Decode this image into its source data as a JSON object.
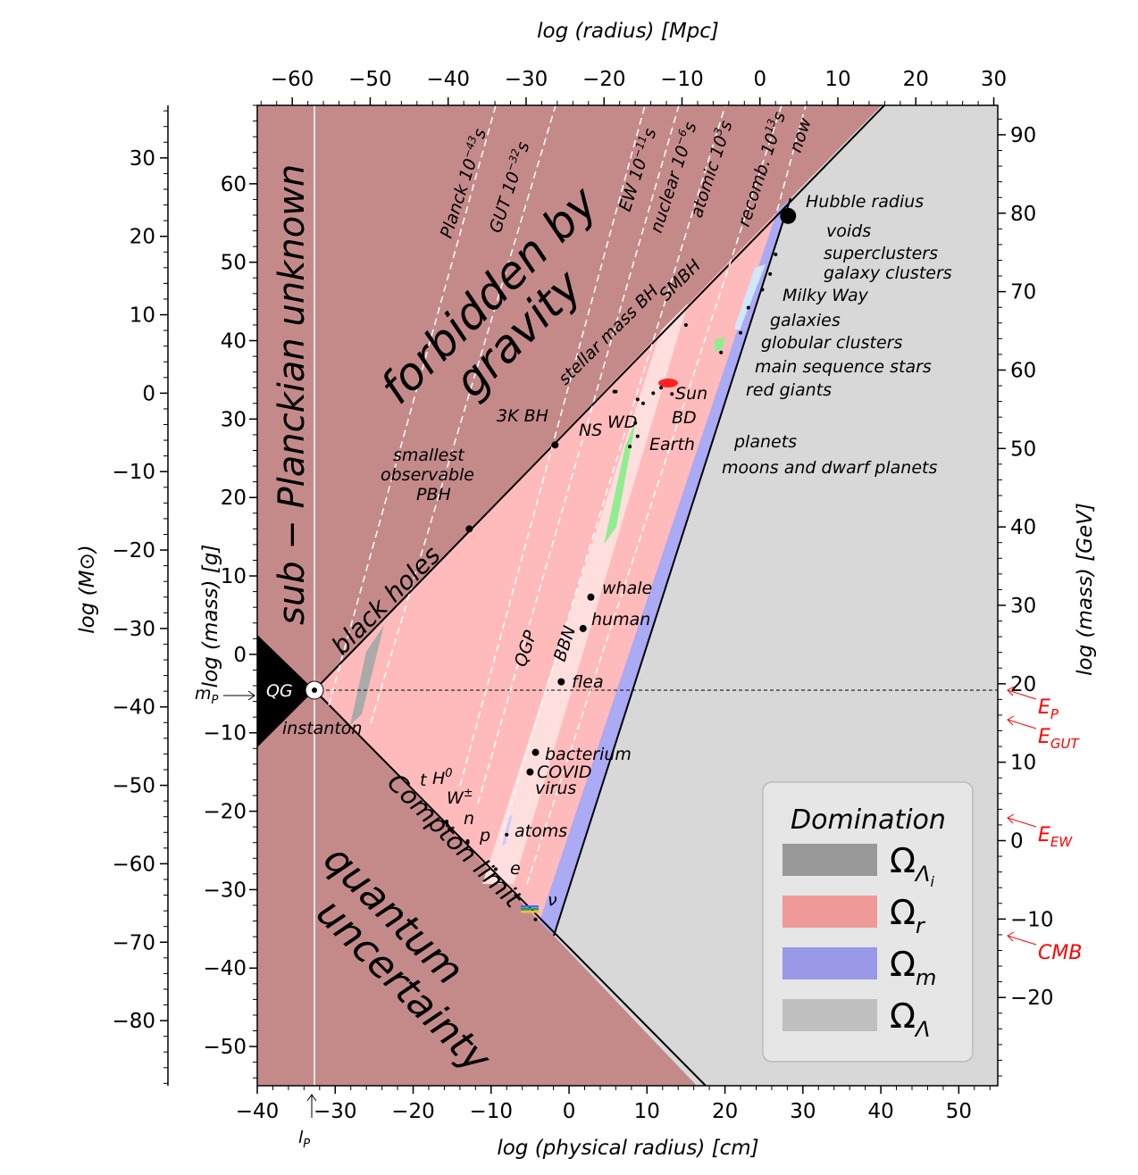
{
  "chart_data": {
    "type": "scatter",
    "axes": {
      "bottom": {
        "label": "log (physical radius) [cm]",
        "range": [
          -40,
          55
        ],
        "ticks": [
          -40,
          -30,
          -20,
          -10,
          0,
          10,
          20,
          30,
          40,
          50
        ],
        "tick_labels": [
          "−40",
          "−30",
          "−20",
          "−10",
          "0",
          "10",
          "20",
          "30",
          "40",
          "50"
        ]
      },
      "top": {
        "label": "log (radius) [Mpc]",
        "ticks": [
          -60,
          -50,
          -40,
          -30,
          -20,
          -10,
          0,
          10,
          20,
          30
        ],
        "tick_labels": [
          "−60",
          "−50",
          "−40",
          "−30",
          "−20",
          "−10",
          "0",
          "10",
          "20",
          "30"
        ]
      },
      "left_inner": {
        "label": "log (mass) [g]",
        "range": [
          -55,
          70
        ],
        "ticks": [
          -50,
          -40,
          -30,
          -20,
          -10,
          0,
          10,
          20,
          30,
          40,
          50,
          60
        ],
        "tick_labels": [
          "−50",
          "−40",
          "−30",
          "−20",
          "−10",
          "0",
          "10",
          "20",
          "30",
          "40",
          "50",
          "60"
        ]
      },
      "left_outer": {
        "label": "log (M⊙)",
        "ticks": [
          30,
          20,
          10,
          0,
          -10,
          -20,
          -30,
          -40,
          -50,
          -60,
          -70,
          -80
        ],
        "tick_labels": [
          "30",
          "20",
          "10",
          "0",
          "−10",
          "−20",
          "−30",
          "−40",
          "−50",
          "−60",
          "−70",
          "−80"
        ]
      },
      "right": {
        "label": "log (mass) [GeV]",
        "ticks": [
          90,
          80,
          70,
          60,
          50,
          40,
          30,
          20,
          10,
          0,
          -10,
          -20
        ],
        "tick_labels": [
          "90",
          "80",
          "70",
          "60",
          "50",
          "40",
          "30",
          "20",
          "10",
          "0",
          "−10",
          "−20"
        ]
      }
    },
    "region_labels": {
      "forbidden": "forbidden by gravity",
      "planckian": "sub − Planckian unknown",
      "quantum": "quantum uncertainty",
      "black_holes": "black holes",
      "compton": "Compton limit",
      "qg": "QG",
      "instanton": "instanton",
      "qgp": "QGP",
      "bbn": "BBN"
    },
    "epochs": [
      {
        "name": "Planck",
        "time": "10",
        "exp": "−43",
        "unit": "s"
      },
      {
        "name": "GUT",
        "time": "10",
        "exp": "−32",
        "unit": "s"
      },
      {
        "name": "EW",
        "time": "10",
        "exp": "−11",
        "unit": "s"
      },
      {
        "name": "nuclear",
        "time": "10",
        "exp": "−6",
        "unit": "s"
      },
      {
        "name": "atomic",
        "time": "10",
        "exp": "3",
        "unit": "s"
      },
      {
        "name": "recomb.",
        "time": "10",
        "exp": "13",
        "unit": "s"
      },
      {
        "name": "now",
        "time": "",
        "exp": "",
        "unit": ""
      }
    ],
    "objects": [
      {
        "label": "Hubble radius",
        "x": 28.1,
        "y": 55.9
      },
      {
        "label": "voids",
        "x": 26.5,
        "y": 51.0
      },
      {
        "label": "superclusters",
        "x": 25.8,
        "y": 48.5
      },
      {
        "label": "galaxy clusters",
        "x": 24.8,
        "y": 46.5
      },
      {
        "label": "Milky Way",
        "x": 23.0,
        "y": 44.2
      },
      {
        "label": "galaxies",
        "x": 22.0,
        "y": 41.0
      },
      {
        "label": "globular clusters",
        "x": 19.5,
        "y": 38.5
      },
      {
        "label": "main sequence stars",
        "x": 11.8,
        "y": 34.0
      },
      {
        "label": "red giants",
        "x": 13.2,
        "y": 33.2
      },
      {
        "label": "Sun",
        "x": 10.8,
        "y": 33.3
      },
      {
        "label": "BD",
        "x": 9.5,
        "y": 32.0
      },
      {
        "label": "NS",
        "x": 6.0,
        "y": 33.5
      },
      {
        "label": "WD",
        "x": 8.8,
        "y": 32.5
      },
      {
        "label": "planets",
        "x": 8.5,
        "y": 29.5
      },
      {
        "label": "Earth",
        "x": 8.8,
        "y": 27.8
      },
      {
        "label": "moons and dwarf planets",
        "x": 7.8,
        "y": 26.5
      },
      {
        "label": "stellar mass BH",
        "x": 5.8,
        "y": 33.5
      },
      {
        "label": "SMBH",
        "x": 15.0,
        "y": 42.0
      },
      {
        "label": "3K BH",
        "x": -1.8,
        "y": 26.7
      },
      {
        "label": "smallest observable PBH",
        "x": -12.8,
        "y": 16.0
      },
      {
        "label": "whale",
        "x": 2.8,
        "y": 7.3
      },
      {
        "label": "human",
        "x": 1.8,
        "y": 3.3
      },
      {
        "label": "flea",
        "x": -1.0,
        "y": -3.5
      },
      {
        "label": "bacterium",
        "x": -4.3,
        "y": -12.5
      },
      {
        "label": "COVID virus",
        "x": -5.0,
        "y": -15.0
      },
      {
        "label": "atoms",
        "x": -8.0,
        "y": -23.0
      },
      {
        "label": "t",
        "x": -15.7,
        "y": -21.3
      },
      {
        "label": "H",
        "sup": "0",
        "x": -15.7,
        "y": -21.5
      },
      {
        "label": "W",
        "sup": "±",
        "x": -15.6,
        "y": -21.8
      },
      {
        "label": "n",
        "x": -13.0,
        "y": -23.8
      },
      {
        "label": "p",
        "x": -13.0,
        "y": -24.0
      },
      {
        "label": "e",
        "x": -9.4,
        "y": -27.4
      },
      {
        "label": "ν",
        "x": -4.3,
        "y": -33.8
      }
    ],
    "markers": {
      "m_P": "m",
      "m_P_sub": "P",
      "l_P": "l",
      "l_P_sub": "P"
    },
    "energies": [
      {
        "label": "E",
        "sub": "P"
      },
      {
        "label": "E",
        "sub": "GUT"
      },
      {
        "label": "E",
        "sub": "EW"
      },
      {
        "label": "CMB",
        "sub": ""
      }
    ],
    "legend": {
      "title": "Domination",
      "placement": "lower-right",
      "items": [
        {
          "symbol": "Ω",
          "sub": "Λ",
          "subsub": "i",
          "color": "#999999"
        },
        {
          "symbol": "Ω",
          "sub": "r",
          "color": "#f09999"
        },
        {
          "symbol": "Ω",
          "sub": "m",
          "color": "#9999e8"
        },
        {
          "symbol": "Ω",
          "sub": "Λ",
          "color": "#bfbfbf"
        }
      ]
    },
    "colors": {
      "forbidden": "#c48a8a",
      "radiation": "#ffbbbb",
      "matter": "#aaaaf5",
      "lambda": "#d8d8d8",
      "inflation": "#aaaaaa",
      "qgp_band": "#ffdede",
      "energy_arrows": "#ff0000"
    }
  }
}
